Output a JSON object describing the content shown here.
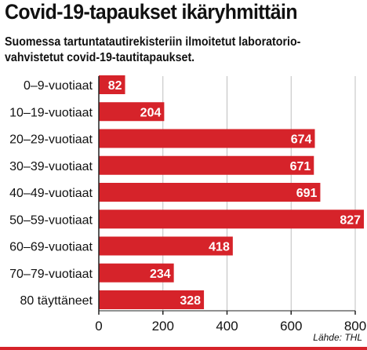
{
  "chart_data": {
    "type": "bar",
    "orientation": "horizontal",
    "title": "Covid-19-tapaukset ikäryhmittäin",
    "subtitle": "Suomessa tartuntatautirekisteriin ilmoitetut laboratorio-vahvistetut covid-19-tautitapaukset.",
    "categories": [
      "0–9-vuotiaat",
      "10–19-vuotiaat",
      "20–29-vuotiaat",
      "30–39-vuotiaat",
      "40–49-vuotiaat",
      "50–59-vuotiaat",
      "60–69-vuotiaat",
      "70–79-vuotiaat",
      "80 täyttäneet"
    ],
    "values": [
      82,
      204,
      674,
      671,
      691,
      827,
      418,
      234,
      328
    ],
    "data_labels": [
      "82",
      "204",
      "674",
      "671",
      "691",
      "827",
      "418",
      "234",
      "328"
    ],
    "xlim": [
      0,
      800
    ],
    "x_ticks": [
      0,
      200,
      400,
      600,
      800
    ],
    "x_tick_labels": [
      "0",
      "200",
      "400",
      "600",
      "800"
    ],
    "grid": true,
    "source": "Lähde: THL",
    "colors": {
      "bar": "#d6232a",
      "label_text": "#ffffff",
      "grid": "#bfbfbf",
      "axis": "#222222"
    }
  }
}
